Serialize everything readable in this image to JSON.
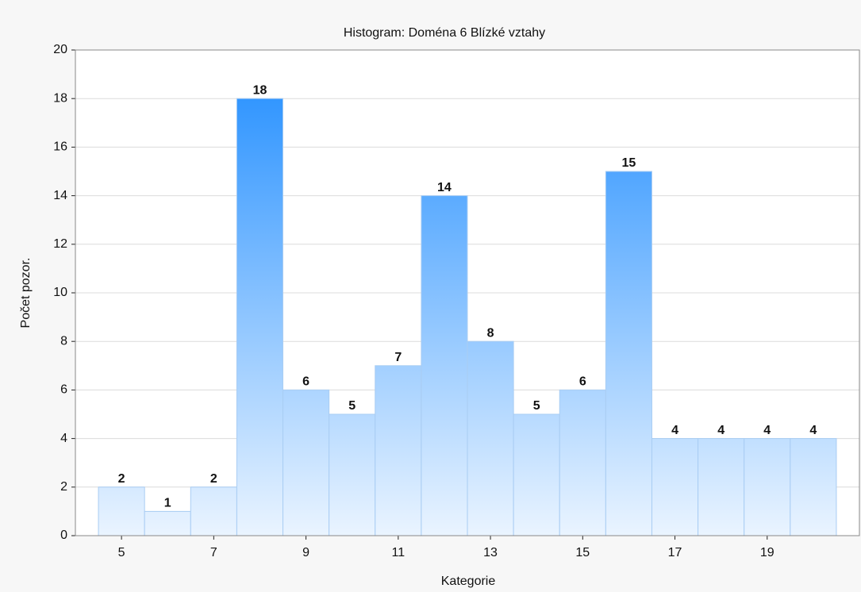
{
  "chart_data": {
    "type": "histogram",
    "title": "Histogram: Doména 6 Blízké vztahy",
    "x_label": "Kategorie",
    "y_label": "Počet pozor.",
    "bins": [
      4.5,
      5.5,
      6.5,
      7.5,
      8.5,
      9.5,
      10.5,
      11.5,
      12.5,
      13.5,
      14.5,
      15.5,
      16.5,
      17.5,
      18.5,
      19.5,
      20.5
    ],
    "values": [
      2,
      1,
      2,
      18,
      6,
      5,
      7,
      14,
      8,
      5,
      6,
      15,
      4,
      4,
      4,
      4
    ],
    "xlim": [
      4,
      21
    ],
    "xticks": [
      5,
      7,
      9,
      11,
      13,
      15,
      17,
      19
    ],
    "ylim": [
      0,
      20
    ],
    "yticks": [
      0,
      2,
      4,
      6,
      8,
      10,
      12,
      14,
      16,
      18,
      20
    ],
    "grid": true,
    "color": "#1e8cff"
  }
}
